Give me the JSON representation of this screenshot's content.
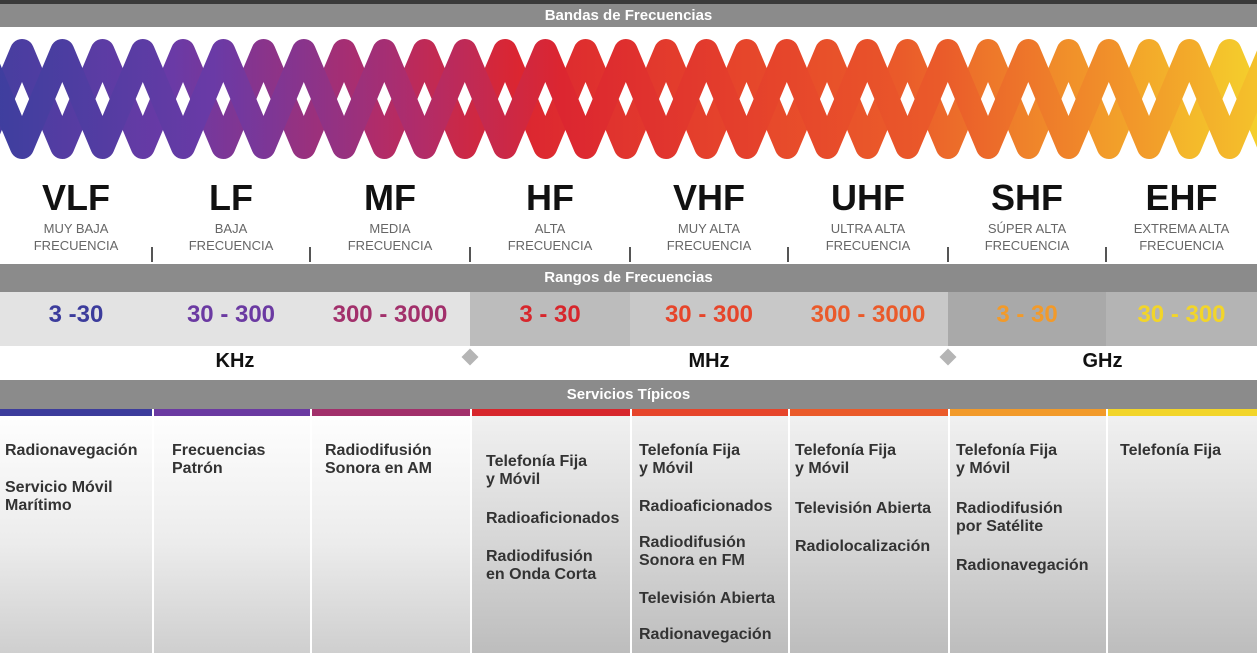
{
  "headers": {
    "bands_title": "Bandas de Frecuencias",
    "ranges_title": "Rangos de Frecuencias",
    "services_title": "Servicios Típicos"
  },
  "colors": {
    "VLF": "#3c3c9c",
    "LF": "#6b3aa2",
    "MF": "#a2306b",
    "HF": "#d7262c",
    "VHF": "#e6452b",
    "UHF": "#ea5a2a",
    "SHF": "#f29a2a",
    "EHF": "#f2d52a"
  },
  "bands": [
    {
      "abbr": "VLF",
      "line1": "MUY BAJA",
      "line2": "FRECUENCIA",
      "range": "3 -30"
    },
    {
      "abbr": "LF",
      "line1": "BAJA",
      "line2": "FRECUENCIA",
      "range": "30 - 300"
    },
    {
      "abbr": "MF",
      "line1": "MEDIA",
      "line2": "FRECUENCIA",
      "range": "300 - 3000"
    },
    {
      "abbr": "HF",
      "line1": "ALTA",
      "line2": "FRECUENCIA",
      "range": "3 - 30"
    },
    {
      "abbr": "VHF",
      "line1": "MUY ALTA",
      "line2": "FRECUENCIA",
      "range": "30 - 300"
    },
    {
      "abbr": "UHF",
      "line1": "ULTRA ALTA",
      "line2": "FRECUENCIA",
      "range": "300 - 3000"
    },
    {
      "abbr": "SHF",
      "line1": "SÚPER ALTA",
      "line2": "FRECUENCIA",
      "range": "3 - 30"
    },
    {
      "abbr": "EHF",
      "line1": "EXTREMA ALTA",
      "line2": "FRECUENCIA",
      "range": "30 - 300"
    }
  ],
  "units": [
    "KHz",
    "MHz",
    "GHz"
  ],
  "services": [
    [
      "Radionavegación",
      "Servicio Móvil\nMarítimo"
    ],
    [
      "Frecuencias\nPatrón"
    ],
    [
      "Radiodifusión\nSonora en AM"
    ],
    [
      "Telefonía Fija\ny Móvil",
      "Radioaficionados",
      "Radiodifusión\nen Onda Corta"
    ],
    [
      "Telefonía Fija\ny Móvil",
      "Radioaficionados",
      "Radiodifusión\nSonora en FM",
      "Televisión Abierta",
      "Radionavegación"
    ],
    [
      "Telefonía Fija\ny Móvil",
      "Televisión Abierta",
      "Radiolocalización"
    ],
    [
      "Telefonía Fija\ny Móvil",
      "Radiodifusión\npor Satélite",
      "Radionavegación"
    ],
    [
      "Telefonía Fija"
    ]
  ]
}
